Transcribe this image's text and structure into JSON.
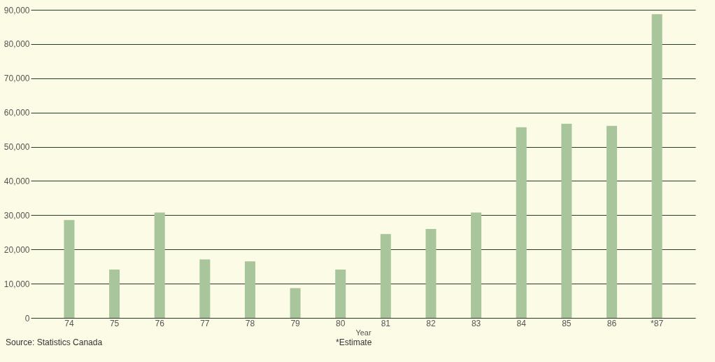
{
  "chart_data": {
    "type": "bar",
    "xlabel": "Year",
    "categories": [
      "74",
      "75",
      "76",
      "77",
      "78",
      "79",
      "80",
      "81",
      "82",
      "83",
      "84",
      "85",
      "86",
      "*87"
    ],
    "values": [
      28600,
      14100,
      30800,
      17100,
      16500,
      8700,
      14100,
      24500,
      26000,
      30800,
      55700,
      56700,
      56100,
      88700
    ],
    "color": "#a9c59b",
    "ylim": [
      0,
      90000
    ],
    "yticks": [
      0,
      {
        "value": 10000,
        "label": "10,000"
      },
      {
        "value": 20000,
        "label": "20,000"
      },
      {
        "value": 30000,
        "label": "30,000"
      },
      {
        "value": 40000,
        "label": "40,000"
      },
      {
        "value": 50000,
        "label": "50,000"
      },
      {
        "value": 60000,
        "label": "60,000"
      },
      {
        "value": 70000,
        "label": "70,000"
      },
      {
        "value": 80000,
        "label": "80,000"
      },
      {
        "value": 90000,
        "label": "90,000"
      }
    ],
    "grid": "y",
    "annotations": [
      "Source: Statistics Canada",
      "*Estimate"
    ]
  }
}
